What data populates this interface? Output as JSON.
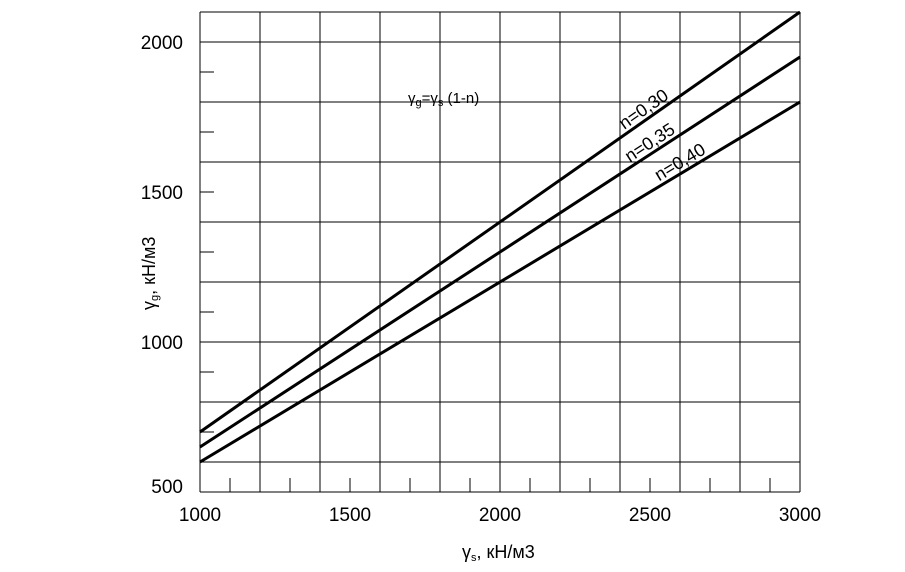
{
  "chart_data": {
    "type": "line",
    "x": [
      1000,
      3000
    ],
    "series": [
      {
        "name": "n=0,30",
        "values": [
          700,
          2100
        ]
      },
      {
        "name": "n=0,35",
        "values": [
          650,
          1950
        ]
      },
      {
        "name": "n=0,40",
        "values": [
          600,
          1800
        ]
      }
    ],
    "formula": {
      "main1": "γ",
      "sub1": "g",
      "main2": "=γ",
      "sub2": "s",
      "tail": " (1-n)"
    },
    "xlabel": {
      "main": "γ",
      "sub": "s",
      "tail": ", кН/м3"
    },
    "ylabel": {
      "main": "γ",
      "sub": "g",
      "tail": ", кН/м3"
    },
    "xlim": [
      1000,
      3000
    ],
    "ylim": [
      500,
      2100
    ],
    "x_major_ticks": [
      1000,
      1200,
      1400,
      1600,
      1800,
      2000,
      2200,
      2400,
      2600,
      2800,
      3000
    ],
    "x_tick_labels": [
      "1000",
      "1500",
      "2000",
      "2500",
      "3000"
    ],
    "y_tick_labels": [
      "500",
      "1000",
      "1500",
      "2000"
    ],
    "grid": true
  }
}
